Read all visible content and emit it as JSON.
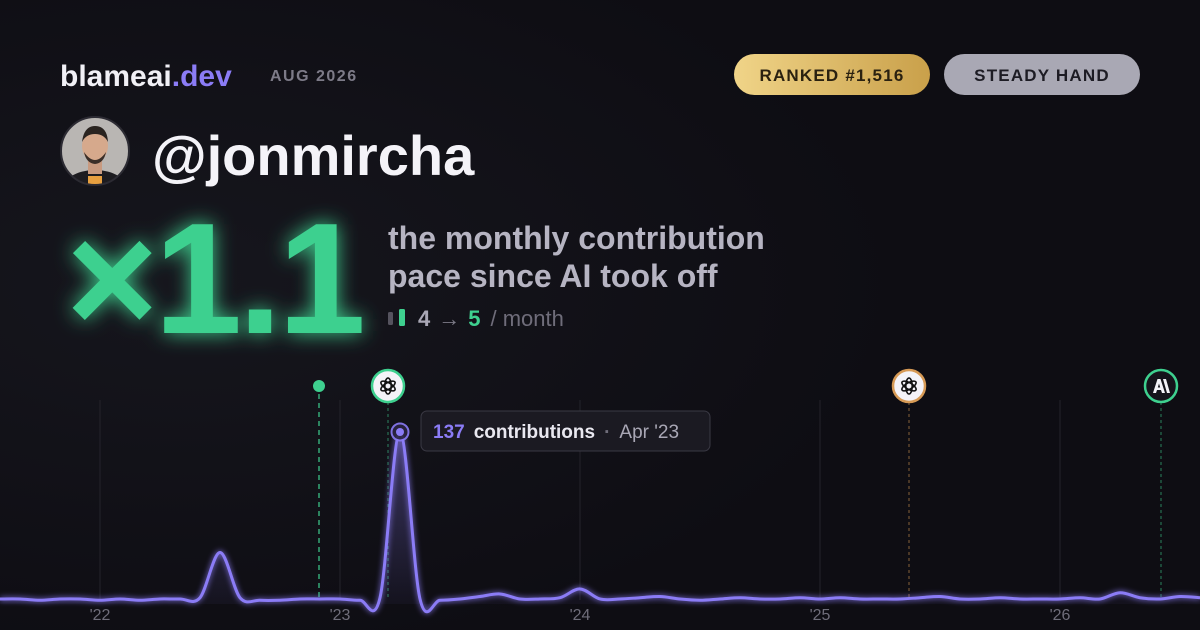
{
  "header": {
    "brand": "blameai",
    "brand_tld": ".dev",
    "period": "AUG 2026",
    "rank_badge": "RANKED #1,516",
    "style_badge": "STEADY HAND"
  },
  "profile": {
    "handle": "@jonmircha"
  },
  "headline": {
    "multiplier": "×1.1",
    "caption_lines": [
      "the monthly contribution",
      "pace since AI took off"
    ],
    "before": 4,
    "arrow": "→",
    "after": 5,
    "unit": "/ month"
  },
  "chart_data": {
    "type": "line",
    "categories": [
      null,
      null,
      null,
      null,
      null,
      "'22",
      null,
      null,
      null,
      null,
      null,
      null,
      null,
      null,
      null,
      null,
      null,
      "'23",
      null,
      null,
      null,
      null,
      null,
      null,
      null,
      null,
      null,
      null,
      null,
      "'24",
      null,
      null,
      null,
      null,
      null,
      null,
      null,
      null,
      null,
      null,
      null,
      "'25",
      null,
      null,
      null,
      null,
      null,
      null,
      null,
      null,
      null,
      null,
      null,
      "'26",
      null,
      null,
      null,
      null,
      null,
      null,
      null
    ],
    "series": [
      {
        "name": "contributions",
        "color": "#8b7cf6",
        "values": [
          4,
          4,
          3,
          4,
          4,
          3,
          4,
          3,
          4,
          4,
          5,
          41,
          5,
          3,
          3,
          4,
          4,
          4,
          3,
          5,
          137,
          4,
          3,
          4,
          6,
          8,
          4,
          4,
          5,
          12,
          4,
          4,
          5,
          6,
          4,
          3,
          4,
          5,
          4,
          4,
          5,
          4,
          5,
          4,
          4,
          4,
          5,
          6,
          4,
          4,
          5,
          4,
          4,
          4,
          5,
          4,
          9,
          5,
          4,
          6,
          5
        ]
      }
    ],
    "tooltip": {
      "label": "Apr '23"
    }
  }
}
